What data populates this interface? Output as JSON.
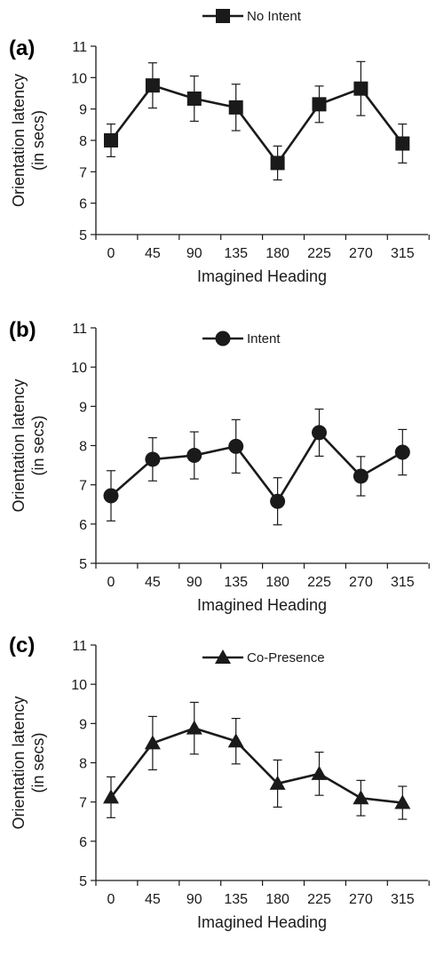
{
  "chart_data": [
    {
      "type": "line",
      "panel_label": "(a)",
      "series": [
        {
          "name": "No Intent",
          "marker": "square",
          "values": [
            8.0,
            9.75,
            9.33,
            9.05,
            7.28,
            9.15,
            9.65,
            7.9
          ],
          "errors": [
            0.52,
            0.72,
            0.72,
            0.74,
            0.54,
            0.58,
            0.86,
            0.62
          ]
        }
      ],
      "categories": [
        "0",
        "45",
        "90",
        "135",
        "180",
        "225",
        "270",
        "315"
      ],
      "xlabel": "Imagined Heading",
      "ylabel": "Orientation latency",
      "ylabel2": "(in secs)",
      "ylim": [
        5,
        11
      ],
      "yticks": [
        "5",
        "6",
        "7",
        "8",
        "9",
        "10",
        "11"
      ],
      "grid": false,
      "legend_position": "top-center"
    },
    {
      "type": "line",
      "panel_label": "(b)",
      "series": [
        {
          "name": "Intent",
          "marker": "circle",
          "values": [
            6.72,
            7.65,
            7.75,
            7.98,
            6.58,
            8.33,
            7.22,
            7.83
          ],
          "errors": [
            0.64,
            0.55,
            0.6,
            0.68,
            0.6,
            0.6,
            0.5,
            0.58
          ]
        }
      ],
      "categories": [
        "0",
        "45",
        "90",
        "135",
        "180",
        "225",
        "270",
        "315"
      ],
      "xlabel": "Imagined Heading",
      "ylabel": "Orientation latency",
      "ylabel2": "(in secs)",
      "ylim": [
        5,
        11
      ],
      "yticks": [
        "5",
        "6",
        "7",
        "8",
        "9",
        "10",
        "11"
      ],
      "grid": false,
      "legend_position": "top-center"
    },
    {
      "type": "line",
      "panel_label": "(c)",
      "series": [
        {
          "name": "Co-Presence",
          "marker": "triangle",
          "values": [
            7.12,
            8.5,
            8.88,
            8.55,
            7.47,
            7.72,
            7.1,
            6.98
          ],
          "errors": [
            0.52,
            0.68,
            0.66,
            0.58,
            0.6,
            0.55,
            0.45,
            0.42
          ]
        }
      ],
      "categories": [
        "0",
        "45",
        "90",
        "135",
        "180",
        "225",
        "270",
        "315"
      ],
      "xlabel": "Imagined Heading",
      "ylabel": "Orientation latency",
      "ylabel2": "(in secs)",
      "ylim": [
        5,
        11
      ],
      "yticks": [
        "5",
        "6",
        "7",
        "8",
        "9",
        "10",
        "11"
      ],
      "grid": false,
      "legend_position": "top-center"
    }
  ],
  "colors": {
    "ink": "#1a1a1a",
    "background": "#ffffff"
  }
}
